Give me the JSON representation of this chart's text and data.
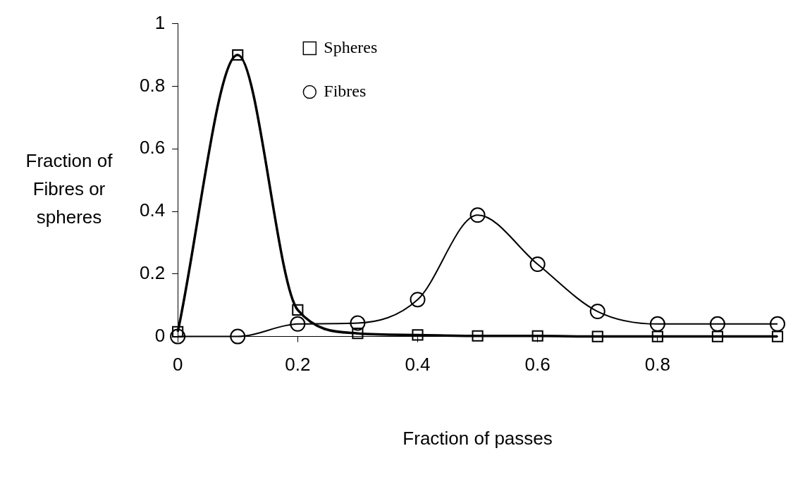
{
  "chart_data": {
    "type": "line",
    "xlabel": "Fraction of passes",
    "ylabel": "Fraction of Fibres or spheres",
    "xlim": [
      0,
      1
    ],
    "ylim": [
      0,
      1
    ],
    "xticks": [
      0,
      0.2,
      0.4,
      0.6,
      0.8
    ],
    "yticks": [
      0,
      0.2,
      0.4,
      0.6,
      0.8,
      1
    ],
    "x": [
      0,
      0.1,
      0.2,
      0.3,
      0.4,
      0.5,
      0.6,
      0.7,
      0.8,
      0.9,
      1
    ],
    "grid": false,
    "legend": "top",
    "series": [
      {
        "name": "Spheres",
        "color": "#000000",
        "marker": "square",
        "values": [
          0.015,
          0.9,
          0.085,
          0.01,
          0.005,
          0.002,
          0.002,
          0,
          0,
          0,
          0
        ]
      },
      {
        "name": "Fibres",
        "color": "#000000",
        "marker": "circle",
        "values": [
          0,
          0,
          0.04,
          0.043,
          0.118,
          0.388,
          0.231,
          0.08,
          0.04,
          0.04,
          0.04
        ]
      }
    ]
  }
}
